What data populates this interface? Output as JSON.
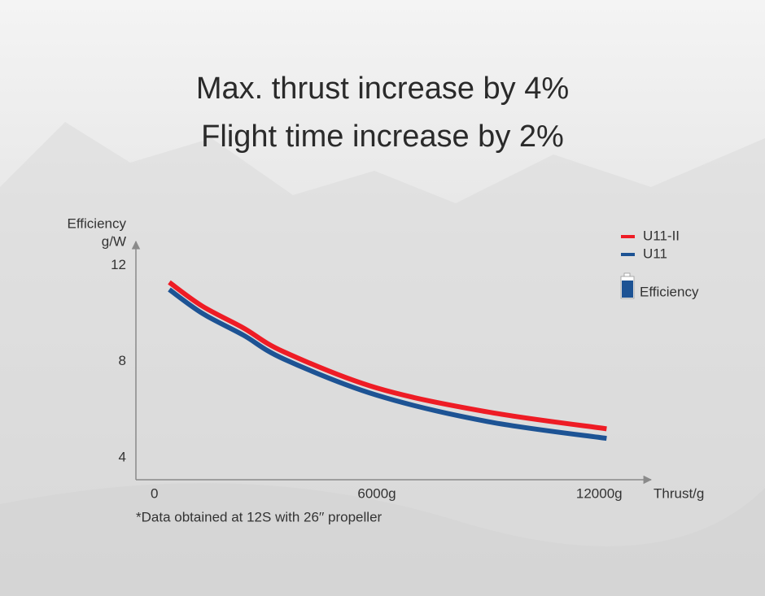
{
  "chart_data": {
    "type": "line",
    "title": "Max. thrust increase by 4%",
    "subtitle": "Flight time increase by 2%",
    "ylabel": "Efficiency",
    "yunit": "g/W",
    "xlabel": "Thrust/g",
    "note": "*Data obtained at 12S with 26′′ propeller",
    "legend_extra": "Efficiency",
    "x": [
      400,
      1300,
      2400,
      3500,
      6000,
      9000,
      12200
    ],
    "series": [
      {
        "name": "U11-II",
        "color": "#ee1c25",
        "values": [
          11.3,
          10.3,
          9.4,
          8.4,
          6.9,
          5.9,
          5.2
        ]
      },
      {
        "name": "U11",
        "color": "#1d5394",
        "values": [
          11.0,
          10.0,
          9.1,
          8.1,
          6.6,
          5.5,
          4.8
        ]
      }
    ],
    "xlim": [
      -500,
      13400
    ],
    "ylim": [
      3.08,
      13
    ],
    "xticks": [
      0,
      {
        "value": 6000,
        "label": "6000g"
      },
      {
        "value": 12000,
        "label": "12000g"
      }
    ],
    "yticks": [
      4,
      8,
      12
    ],
    "legend": "top-right"
  }
}
